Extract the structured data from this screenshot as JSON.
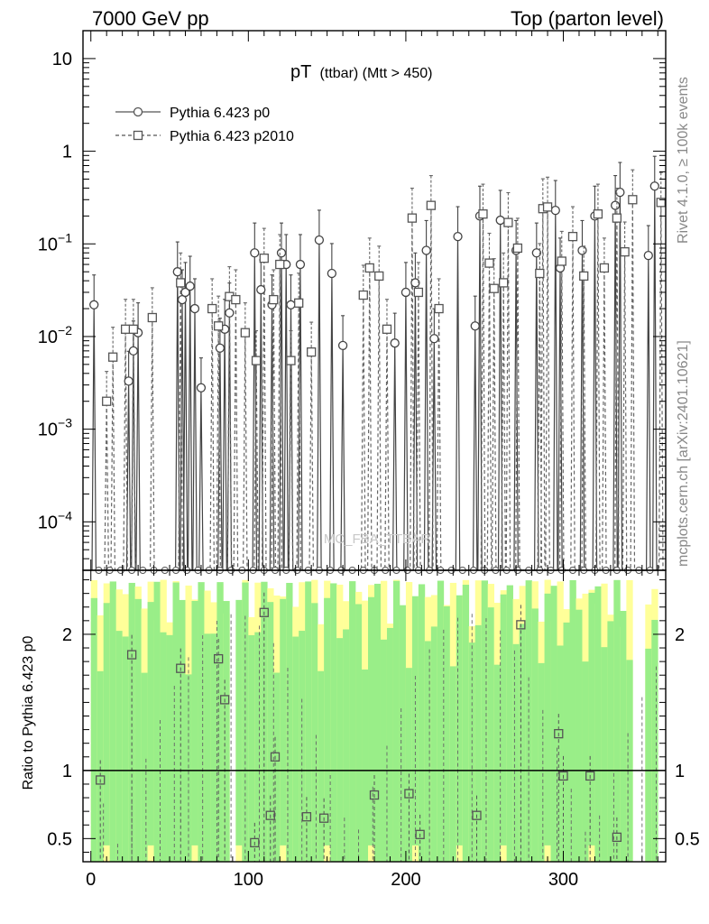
{
  "header": {
    "left": "7000 GeV pp",
    "right": "Top (parton level)"
  },
  "side_text": {
    "upper": "Rivet 4.1.0, ≥ 100k events",
    "lower": "mcplots.cern.ch [arXiv:2401.10621]"
  },
  "watermark": "MC_FBA_TTBAR",
  "chart_data": {
    "type": "scatter",
    "title": "pT (ttbar) (Mtt > 450)",
    "title_main": "pT",
    "title_sub": "(ttbar) (Mtt > 450)",
    "xlabel": "",
    "ylabel_ratio": "Ratio to Pythia 6.423 p0",
    "xlim": [
      -5,
      365
    ],
    "ylim_main": [
      3e-05,
      20
    ],
    "ylim_ratio": [
      0.33,
      2.47
    ],
    "x_ticks": [
      0,
      100,
      200,
      300
    ],
    "y_ticks_main": [
      {
        "value": 10,
        "base": "10",
        "exp": ""
      },
      {
        "value": 1,
        "base": "1",
        "exp": ""
      },
      {
        "value": 0.1,
        "base": "10",
        "exp": "−1"
      },
      {
        "value": 0.01,
        "base": "10",
        "exp": "−2"
      },
      {
        "value": 0.001,
        "base": "10",
        "exp": "−3"
      },
      {
        "value": 0.0001,
        "base": "10",
        "exp": "−4"
      }
    ],
    "y_ticks_ratio": [
      0.5,
      1,
      2
    ],
    "legend": [
      {
        "name": "Pythia 6.423 p0",
        "marker": "circle",
        "line": "solid"
      },
      {
        "name": "Pythia 6.423 p2010",
        "marker": "square",
        "line": "dashed"
      }
    ],
    "series": [
      {
        "name": "Pythia 6.423 p0",
        "points": [
          [
            2,
            0.022
          ],
          [
            24,
            0.0033
          ],
          [
            27,
            0.007
          ],
          [
            30,
            0.011
          ],
          [
            55,
            0.05
          ],
          [
            58,
            0.025
          ],
          [
            60,
            0.03
          ],
          [
            63,
            0.035
          ],
          [
            66,
            0.02
          ],
          [
            70,
            0.0028
          ],
          [
            82,
            0.0075
          ],
          [
            85,
            0.012
          ],
          [
            88,
            0.018
          ],
          [
            104,
            0.08
          ],
          [
            108,
            0.032
          ],
          [
            115,
            0.022
          ],
          [
            121,
            0.08
          ],
          [
            124,
            0.06
          ],
          [
            127,
            0.022
          ],
          [
            133,
            0.06
          ],
          [
            145,
            0.11
          ],
          [
            153,
            0.048
          ],
          [
            160,
            0.008
          ],
          [
            193,
            0.0085
          ],
          [
            200,
            0.03
          ],
          [
            206,
            0.038
          ],
          [
            213,
            0.085
          ],
          [
            218,
            0.0095
          ],
          [
            233,
            0.12
          ],
          [
            244,
            0.013
          ],
          [
            247,
            0.2
          ],
          [
            260,
            0.18
          ],
          [
            270,
            0.085
          ],
          [
            283,
            0.08
          ],
          [
            295,
            0.23
          ],
          [
            298,
            0.055
          ],
          [
            312,
            0.085
          ],
          [
            320,
            0.2
          ],
          [
            333,
            0.26
          ],
          [
            336,
            0.36
          ],
          [
            354,
            0.075
          ],
          [
            358,
            0.42
          ]
        ]
      },
      {
        "name": "Pythia 6.423 p2010",
        "points": [
          [
            10,
            0.002
          ],
          [
            14,
            0.006
          ],
          [
            22,
            0.012
          ],
          [
            27,
            0.012
          ],
          [
            39,
            0.016
          ],
          [
            57,
            0.038
          ],
          [
            77,
            0.02
          ],
          [
            81,
            0.013
          ],
          [
            88,
            0.027
          ],
          [
            92,
            0.025
          ],
          [
            98,
            0.011
          ],
          [
            105,
            0.0055
          ],
          [
            110,
            0.07
          ],
          [
            116,
            0.025
          ],
          [
            120,
            0.06
          ],
          [
            127,
            0.0055
          ],
          [
            132,
            0.023
          ],
          [
            140,
            0.0068
          ],
          [
            173,
            0.028
          ],
          [
            177,
            0.055
          ],
          [
            183,
            0.045
          ],
          [
            188,
            0.012
          ],
          [
            204,
            0.19
          ],
          [
            208,
            0.03
          ],
          [
            216,
            0.26
          ],
          [
            221,
            0.02
          ],
          [
            249,
            0.21
          ],
          [
            253,
            0.062
          ],
          [
            256,
            0.033
          ],
          [
            262,
            0.038
          ],
          [
            265,
            0.17
          ],
          [
            271,
            0.09
          ],
          [
            285,
            0.048
          ],
          [
            287,
            0.24
          ],
          [
            290,
            0.25
          ],
          [
            299,
            0.065
          ],
          [
            306,
            0.12
          ],
          [
            313,
            0.045
          ],
          [
            322,
            0.21
          ],
          [
            326,
            0.055
          ],
          [
            334,
            0.19
          ],
          [
            339,
            0.082
          ],
          [
            344,
            0.3
          ],
          [
            362,
            0.28
          ]
        ]
      }
    ],
    "ratio_points": [
      [
        6,
        0.93
      ],
      [
        26,
        1.85
      ],
      [
        57,
        1.75
      ],
      [
        81,
        1.82
      ],
      [
        85,
        1.52
      ],
      [
        110,
        2.16
      ],
      [
        117,
        1.1
      ],
      [
        114,
        0.67
      ],
      [
        137,
        0.66
      ],
      [
        148,
        0.65
      ],
      [
        180,
        0.82
      ],
      [
        202,
        0.83
      ],
      [
        209,
        0.53
      ],
      [
        245,
        0.67
      ],
      [
        273,
        2.07
      ],
      [
        297,
        1.27
      ],
      [
        300,
        0.96
      ],
      [
        317,
        0.96
      ],
      [
        334,
        0.51
      ],
      [
        104,
        0.47
      ]
    ]
  }
}
